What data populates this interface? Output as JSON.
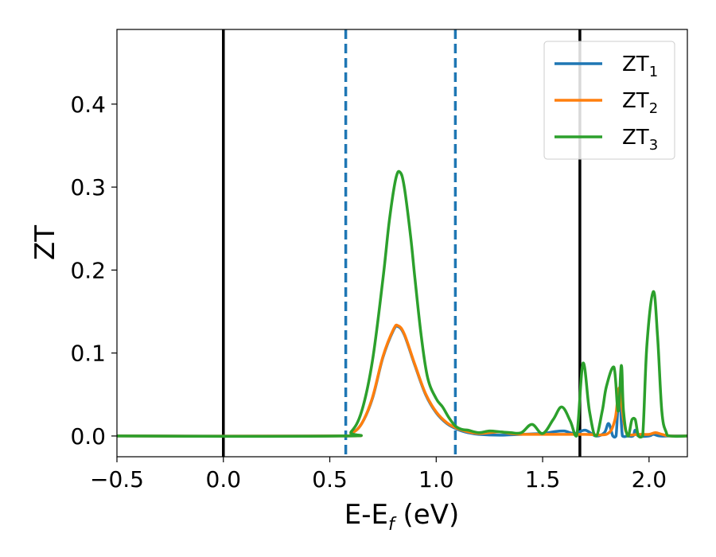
{
  "chart_data": {
    "type": "line",
    "xlabel_main": "E-E",
    "xlabel_sub": "f",
    "xlabel_unit": " (eV)",
    "ylabel": "ZT",
    "xlim": [
      -0.5,
      2.18
    ],
    "ylim": [
      -0.025,
      0.49
    ],
    "x_ticks": [
      -0.5,
      0.0,
      0.5,
      1.0,
      1.5,
      2.0
    ],
    "x_tick_labels": [
      "−0.5",
      "0.0",
      "0.5",
      "1.0",
      "1.5",
      "2.0"
    ],
    "y_ticks": [
      0.0,
      0.1,
      0.2,
      0.3,
      0.4
    ],
    "y_tick_labels": [
      "0.0",
      "0.1",
      "0.2",
      "0.3",
      "0.4"
    ],
    "grid": false,
    "legend_position": "top-right",
    "vertical_lines": [
      {
        "x": 0.0,
        "style": "solid",
        "color": "#000000"
      },
      {
        "x": 1.675,
        "style": "solid",
        "color": "#000000"
      },
      {
        "x": 0.575,
        "style": "dashed",
        "color": "#1f77b4"
      },
      {
        "x": 1.09,
        "style": "dashed",
        "color": "#1f77b4"
      }
    ],
    "series": [
      {
        "name_main": "ZT",
        "name_sub": "1",
        "color": "#1f77b4",
        "x": [
          -0.5,
          0.55,
          0.6,
          0.65,
          0.7,
          0.75,
          0.8,
          0.82,
          0.85,
          0.9,
          0.95,
          1.0,
          1.05,
          1.1,
          1.15,
          1.2,
          1.3,
          1.4,
          1.5,
          1.55,
          1.6,
          1.65,
          1.7,
          1.75,
          1.79,
          1.81,
          1.83,
          1.845,
          1.86,
          1.875,
          1.9,
          1.925,
          1.935,
          1.95,
          2.0,
          2.02,
          2.05,
          2.1,
          2.18
        ],
        "y": [
          0.0,
          0.0,
          0.003,
          0.015,
          0.045,
          0.095,
          0.128,
          0.132,
          0.122,
          0.085,
          0.05,
          0.028,
          0.015,
          0.008,
          0.004,
          0.002,
          0.001,
          0.002,
          0.003,
          0.005,
          0.006,
          0.003,
          0.007,
          0.0,
          0.004,
          0.015,
          0.0,
          0.0,
          0.055,
          0.0,
          0.0,
          0.0,
          0.007,
          0.0,
          0.0,
          0.002,
          0.0,
          0.0,
          0.0
        ]
      },
      {
        "name_main": "ZT",
        "name_sub": "2",
        "color": "#ff7f0e",
        "x": [
          -0.5,
          0.55,
          0.6,
          0.65,
          0.7,
          0.75,
          0.8,
          0.82,
          0.85,
          0.9,
          0.95,
          1.0,
          1.05,
          1.1,
          1.15,
          1.2,
          1.25,
          1.3,
          1.35,
          1.4,
          1.5,
          1.6,
          1.7,
          1.8,
          1.84,
          1.86,
          1.88,
          1.9,
          1.95,
          2.0,
          2.03,
          2.06,
          2.1,
          2.18
        ],
        "y": [
          0.0,
          0.0,
          0.003,
          0.015,
          0.046,
          0.096,
          0.129,
          0.133,
          0.123,
          0.086,
          0.051,
          0.029,
          0.016,
          0.009,
          0.005,
          0.003,
          0.004,
          0.005,
          0.003,
          0.002,
          0.002,
          0.002,
          0.002,
          0.002,
          0.02,
          0.058,
          0.02,
          0.002,
          0.002,
          0.002,
          0.004,
          0.002,
          0.0,
          0.0
        ]
      },
      {
        "name_main": "ZT",
        "name_sub": "3",
        "color": "#2ca02c",
        "x": [
          -0.5,
          0.55,
          0.6,
          0.65,
          0.7,
          0.75,
          0.78,
          0.81,
          0.83,
          0.85,
          0.88,
          0.9,
          0.93,
          0.96,
          1.0,
          1.03,
          1.06,
          1.09,
          1.12,
          1.15,
          1.2,
          1.25,
          1.3,
          1.35,
          1.4,
          1.45,
          1.5,
          1.55,
          1.59,
          1.63,
          1.66,
          1.69,
          1.72,
          1.75,
          1.78,
          1.8,
          1.835,
          1.855,
          1.87,
          1.88,
          1.9,
          1.92,
          1.935,
          1.95,
          1.97,
          1.99,
          2.02,
          2.04,
          2.06,
          2.08,
          2.1,
          2.18
        ],
        "y": [
          0.0,
          0.0,
          0.005,
          0.03,
          0.09,
          0.19,
          0.26,
          0.31,
          0.318,
          0.3,
          0.24,
          0.19,
          0.12,
          0.07,
          0.045,
          0.035,
          0.022,
          0.012,
          0.008,
          0.007,
          0.004,
          0.006,
          0.005,
          0.004,
          0.004,
          0.014,
          0.003,
          0.02,
          0.035,
          0.018,
          0.0,
          0.088,
          0.03,
          0.0,
          0.03,
          0.06,
          0.083,
          0.03,
          0.085,
          0.03,
          0.0,
          0.02,
          0.02,
          0.0,
          0.0,
          0.11,
          0.174,
          0.12,
          0.03,
          0.005,
          0.0,
          0.0
        ]
      }
    ]
  }
}
